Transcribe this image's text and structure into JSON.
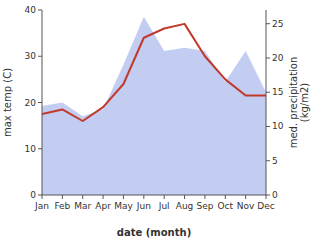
{
  "chart_data": {
    "type": "line",
    "categories": [
      "Jan",
      "Feb",
      "Mar",
      "Apr",
      "May",
      "Jun",
      "Jul",
      "Aug",
      "Sep",
      "Oct",
      "Nov",
      "Dec"
    ],
    "series": [
      {
        "type": "area",
        "axis": "y2",
        "color": "#b8c4f0",
        "values": [
          13.0,
          13.5,
          11.5,
          12.5,
          19.0,
          26.0,
          21.0,
          21.5,
          21.0,
          16.5,
          21.0,
          15.0
        ]
      },
      {
        "type": "line",
        "color": "#c0392b",
        "values": [
          17.5,
          18.5,
          16.0,
          19.0,
          24.0,
          34.0,
          36.0,
          37.0,
          30.0,
          25.0,
          21.5,
          21.5
        ]
      }
    ],
    "x_label": "date (month)",
    "y_label": "max temp (C)",
    "y2_label": "med. precipitation\n(kg/m2)",
    "ylim": [
      0,
      40
    ],
    "yticks": [
      0,
      10,
      20,
      30,
      40
    ],
    "y2lim": [
      0,
      27
    ],
    "y2ticks": [
      0,
      5,
      10,
      15,
      20,
      25
    ],
    "grid": false
  }
}
